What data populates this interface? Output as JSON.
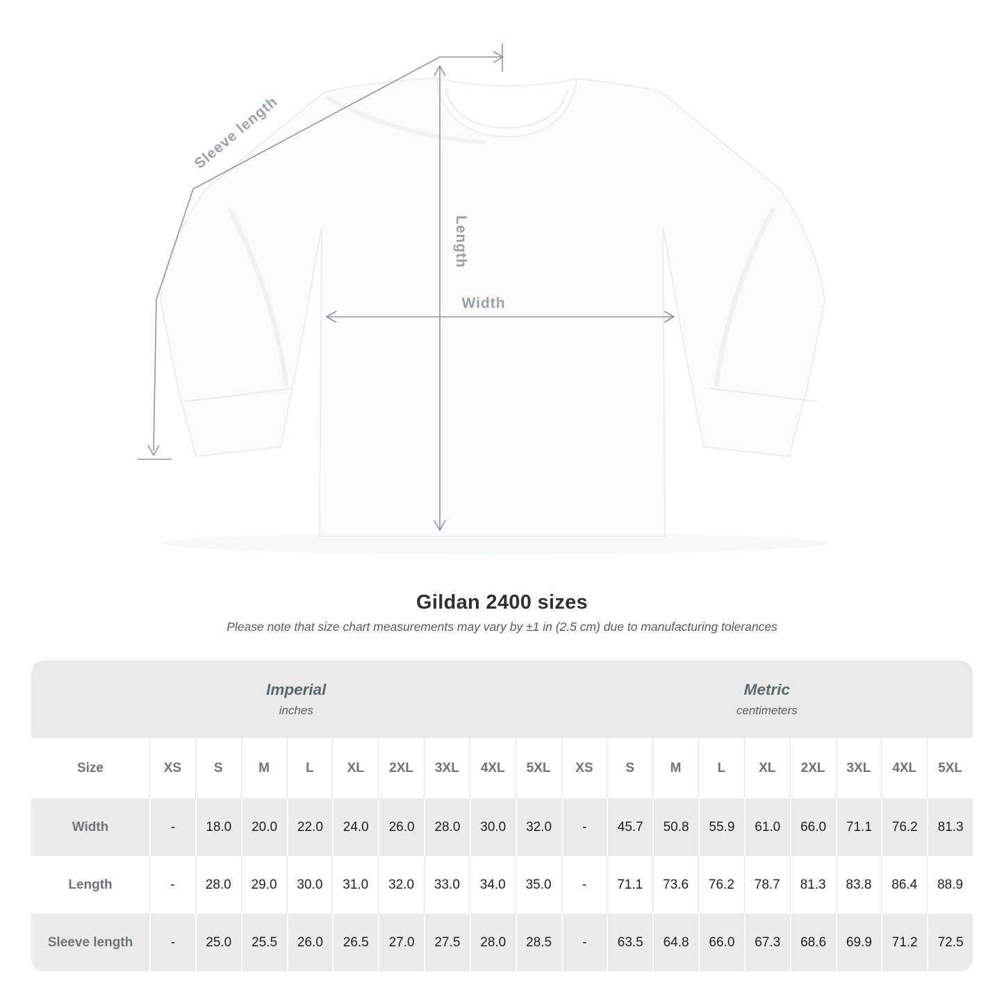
{
  "diagram": {
    "labels": {
      "sleeve": "Sleeve length",
      "length": "Length",
      "width": "Width"
    },
    "line_color": "#8e969c",
    "label_color": "#9aa2a8"
  },
  "title": "Gildan 2400 sizes",
  "subtitle": "Please note that size chart measurements may vary by ±1 in (2.5 cm) due to manufacturing tolerances",
  "table": {
    "groups": [
      {
        "name": "Imperial",
        "unit": "inches"
      },
      {
        "name": "Metric",
        "unit": "centimeters"
      }
    ],
    "size_header": "Size",
    "sizes": [
      "XS",
      "S",
      "M",
      "L",
      "XL",
      "2XL",
      "3XL",
      "4XL",
      "5XL"
    ],
    "rows": [
      {
        "label": "Width",
        "imperial": [
          "-",
          "18.0",
          "20.0",
          "22.0",
          "24.0",
          "26.0",
          "28.0",
          "30.0",
          "32.0"
        ],
        "metric": [
          "-",
          "45.7",
          "50.8",
          "55.9",
          "61.0",
          "66.0",
          "71.1",
          "76.2",
          "81.3"
        ]
      },
      {
        "label": "Length",
        "imperial": [
          "-",
          "28.0",
          "29.0",
          "30.0",
          "31.0",
          "32.0",
          "33.0",
          "34.0",
          "35.0"
        ],
        "metric": [
          "-",
          "71.1",
          "73.6",
          "76.2",
          "78.7",
          "81.3",
          "83.8",
          "86.4",
          "88.9"
        ]
      },
      {
        "label": "Sleeve length",
        "imperial": [
          "-",
          "25.0",
          "25.5",
          "26.0",
          "26.5",
          "27.0",
          "27.5",
          "28.0",
          "28.5"
        ],
        "metric": [
          "-",
          "63.5",
          "64.8",
          "66.0",
          "67.3",
          "68.6",
          "69.9",
          "71.2",
          "72.5"
        ]
      }
    ]
  }
}
